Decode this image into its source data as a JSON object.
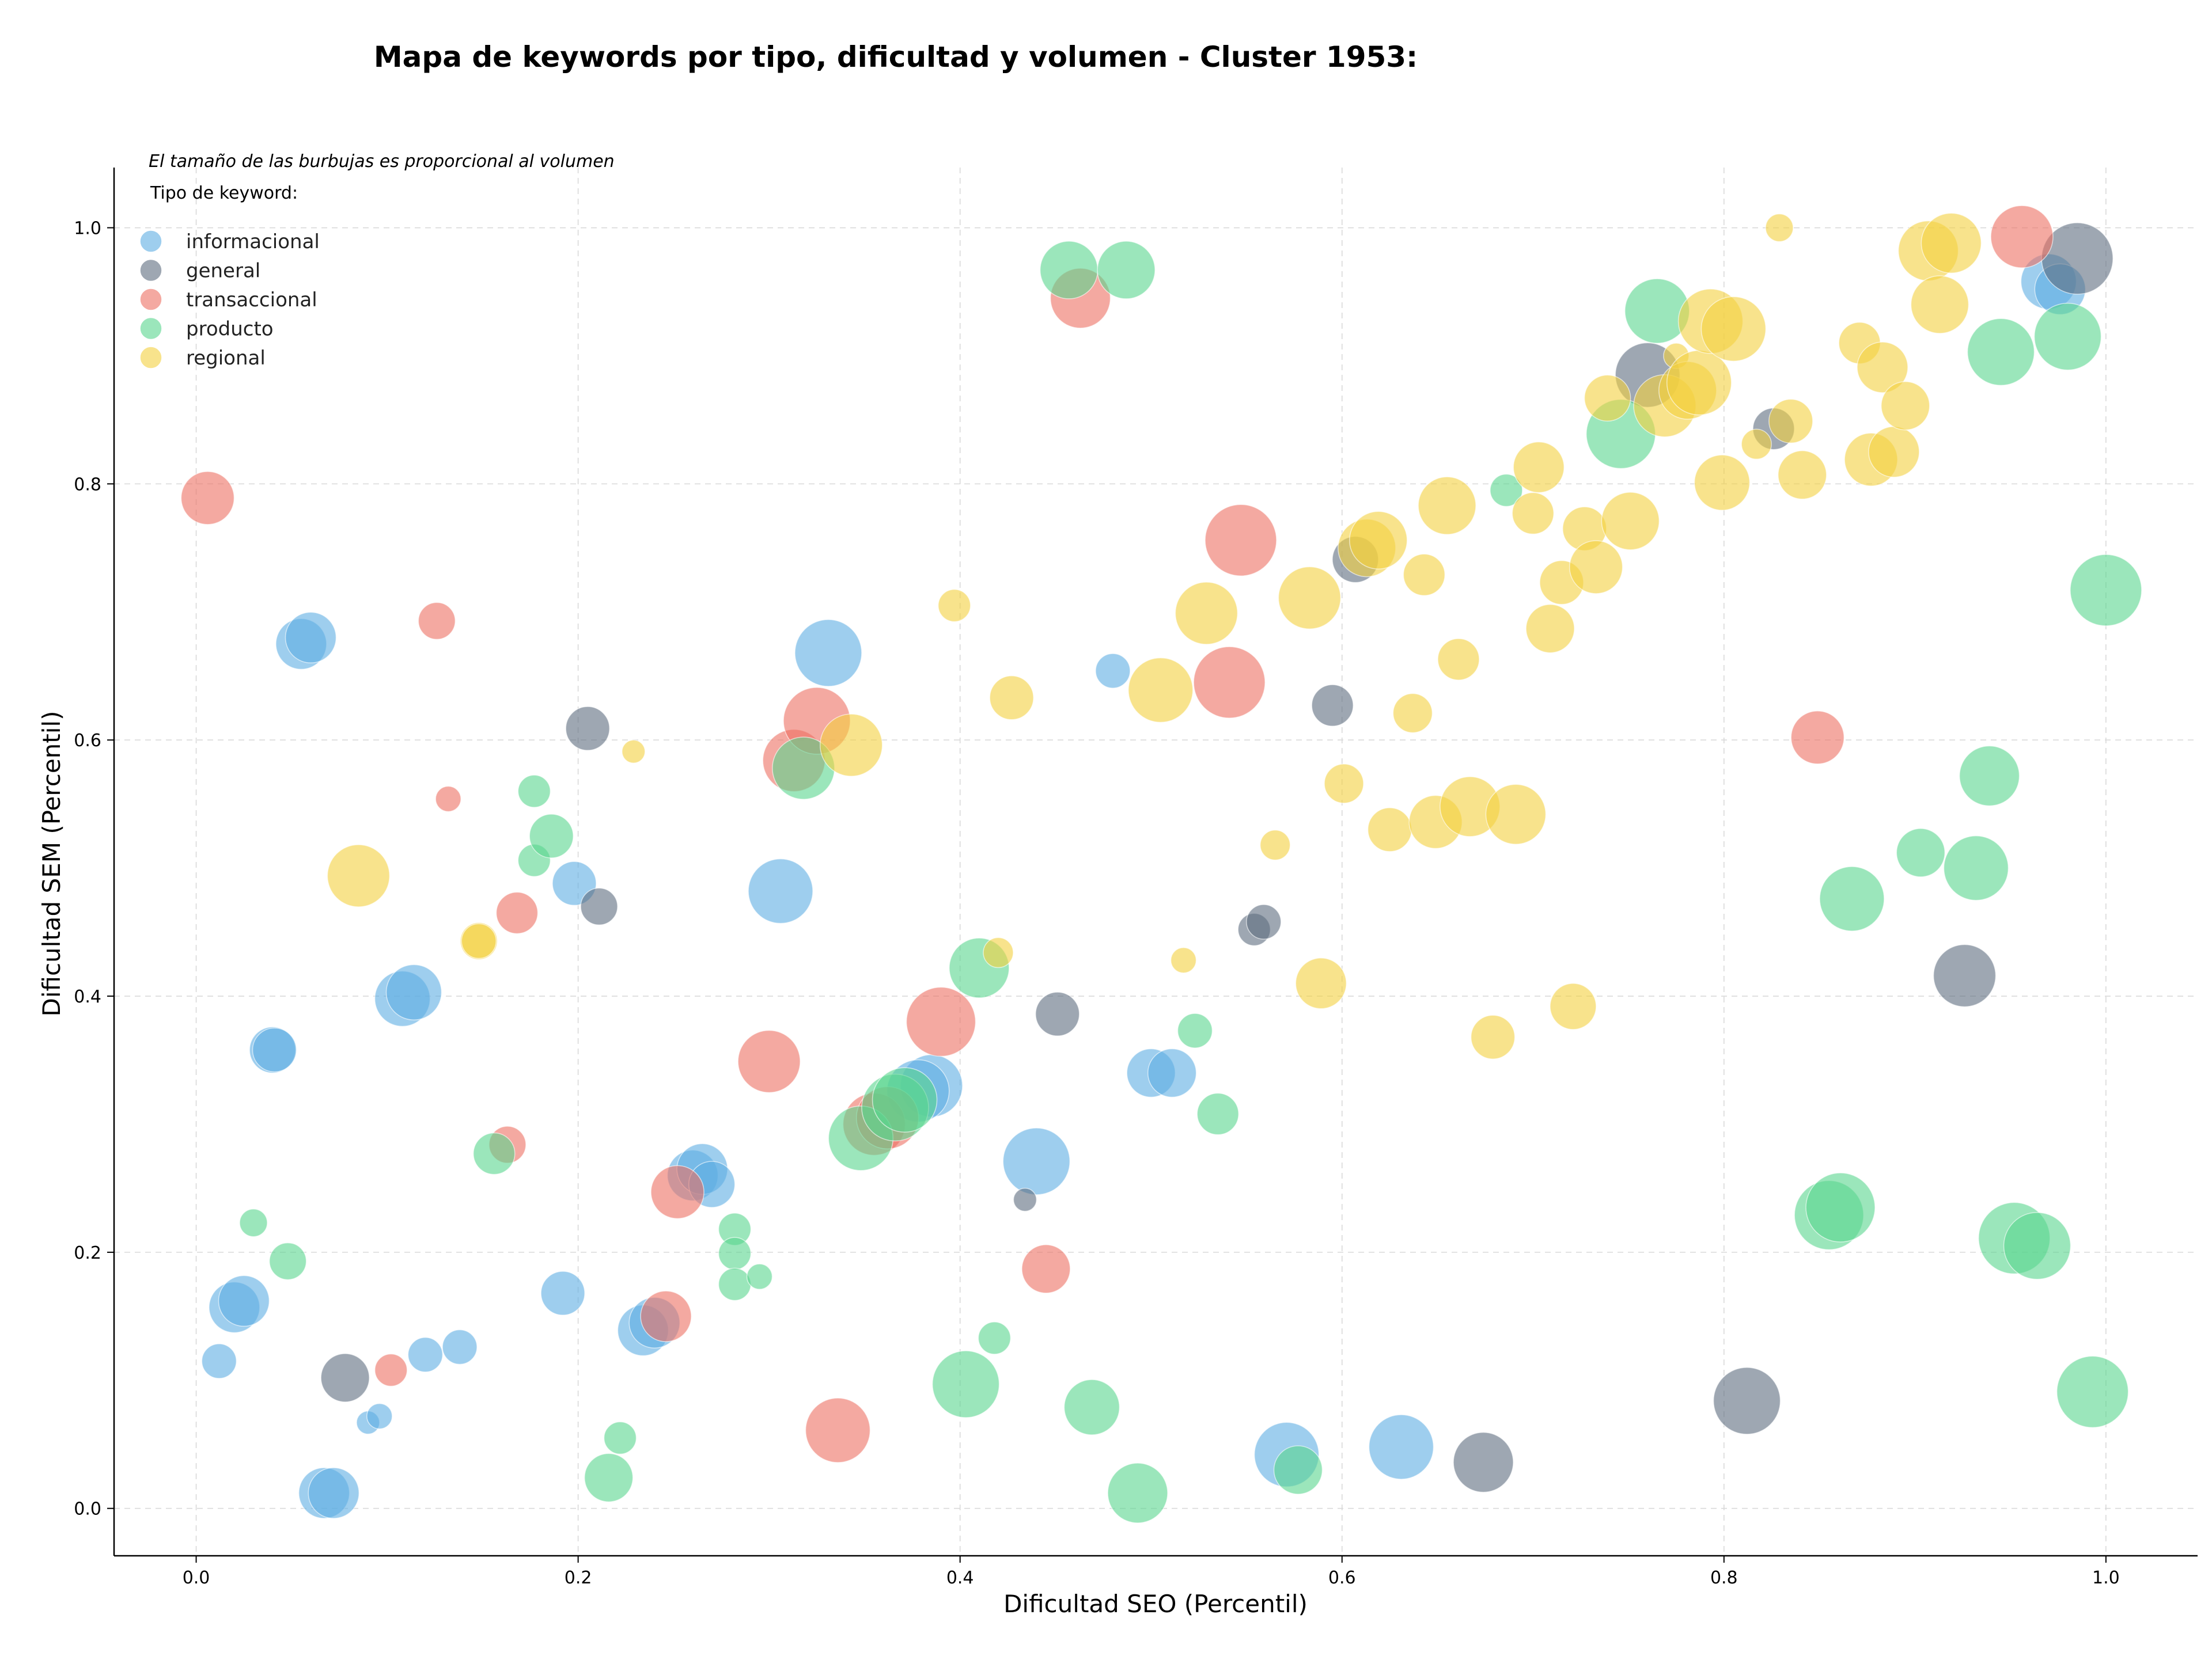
{
  "chart_data": {
    "type": "scatter",
    "title": "Mapa de keywords por tipo, dificultad y volumen - Cluster 1953:",
    "xlabel": "Dificultad SEO (Percentil)",
    "ylabel": "Dificultad SEM (Percentil)",
    "xlim": [
      -0.043,
      1.048
    ],
    "ylim": [
      -0.037,
      1.047
    ],
    "xticks": [
      "0.0",
      "0.2",
      "0.4",
      "0.6",
      "0.8",
      "1.0"
    ],
    "yticks": [
      "0.0",
      "0.2",
      "0.4",
      "0.6",
      "0.8",
      "1.0"
    ],
    "grid": true,
    "size_note": "El tamaño de las burbujas es proporcional al volumen",
    "legend_title": "Tipo de keyword:",
    "legend_position": "top-left",
    "series": [
      {
        "name": "informacional",
        "color": "#5DADE2",
        "points": [
          {
            "x": 0.055,
            "y": 0.675,
            "s": 44
          },
          {
            "x": 0.06,
            "y": 0.68,
            "s": 44
          },
          {
            "x": 0.04,
            "y": 0.358,
            "s": 40
          },
          {
            "x": 0.041,
            "y": 0.358,
            "s": 38
          },
          {
            "x": 0.108,
            "y": 0.398,
            "s": 48
          },
          {
            "x": 0.114,
            "y": 0.403,
            "s": 48
          },
          {
            "x": 0.02,
            "y": 0.157,
            "s": 44
          },
          {
            "x": 0.025,
            "y": 0.162,
            "s": 44
          },
          {
            "x": 0.012,
            "y": 0.115,
            "s": 30
          },
          {
            "x": 0.09,
            "y": 0.067,
            "s": 20
          },
          {
            "x": 0.096,
            "y": 0.072,
            "s": 22
          },
          {
            "x": 0.067,
            "y": 0.012,
            "s": 44
          },
          {
            "x": 0.072,
            "y": 0.012,
            "s": 44
          },
          {
            "x": 0.12,
            "y": 0.12,
            "s": 30
          },
          {
            "x": 0.138,
            "y": 0.126,
            "s": 30
          },
          {
            "x": 0.192,
            "y": 0.168,
            "s": 38
          },
          {
            "x": 0.198,
            "y": 0.488,
            "s": 38
          },
          {
            "x": 0.306,
            "y": 0.482,
            "s": 56
          },
          {
            "x": 0.331,
            "y": 0.668,
            "s": 58
          },
          {
            "x": 0.234,
            "y": 0.139,
            "s": 44
          },
          {
            "x": 0.24,
            "y": 0.145,
            "s": 44
          },
          {
            "x": 0.26,
            "y": 0.26,
            "s": 44
          },
          {
            "x": 0.265,
            "y": 0.265,
            "s": 44
          },
          {
            "x": 0.27,
            "y": 0.253,
            "s": 40
          },
          {
            "x": 0.385,
            "y": 0.33,
            "s": 54
          },
          {
            "x": 0.378,
            "y": 0.326,
            "s": 54
          },
          {
            "x": 0.44,
            "y": 0.271,
            "s": 58
          },
          {
            "x": 0.48,
            "y": 0.654,
            "s": 30
          },
          {
            "x": 0.5,
            "y": 0.34,
            "s": 42
          },
          {
            "x": 0.511,
            "y": 0.34,
            "s": 42
          },
          {
            "x": 0.571,
            "y": 0.042,
            "s": 56
          },
          {
            "x": 0.631,
            "y": 0.048,
            "s": 56
          },
          {
            "x": 0.97,
            "y": 0.958,
            "s": 48
          },
          {
            "x": 0.976,
            "y": 0.952,
            "s": 44
          }
        ]
      },
      {
        "name": "general",
        "color": "#5D6D7E",
        "points": [
          {
            "x": 0.205,
            "y": 0.609,
            "s": 38
          },
          {
            "x": 0.211,
            "y": 0.47,
            "s": 32
          },
          {
            "x": 0.078,
            "y": 0.102,
            "s": 42
          },
          {
            "x": 0.434,
            "y": 0.241,
            "s": 20
          },
          {
            "x": 0.451,
            "y": 0.386,
            "s": 38
          },
          {
            "x": 0.554,
            "y": 0.452,
            "s": 28
          },
          {
            "x": 0.559,
            "y": 0.458,
            "s": 30
          },
          {
            "x": 0.595,
            "y": 0.627,
            "s": 36
          },
          {
            "x": 0.607,
            "y": 0.741,
            "s": 40
          },
          {
            "x": 0.674,
            "y": 0.036,
            "s": 52
          },
          {
            "x": 0.76,
            "y": 0.885,
            "s": 56
          },
          {
            "x": 0.812,
            "y": 0.084,
            "s": 58
          },
          {
            "x": 0.826,
            "y": 0.843,
            "s": 36
          },
          {
            "x": 0.926,
            "y": 0.416,
            "s": 54
          },
          {
            "x": 0.985,
            "y": 0.976,
            "s": 62
          }
        ]
      },
      {
        "name": "transaccional",
        "color": "#EC7063",
        "points": [
          {
            "x": 0.006,
            "y": 0.789,
            "s": 46
          },
          {
            "x": 0.126,
            "y": 0.693,
            "s": 32
          },
          {
            "x": 0.132,
            "y": 0.554,
            "s": 22
          },
          {
            "x": 0.168,
            "y": 0.465,
            "s": 36
          },
          {
            "x": 0.163,
            "y": 0.284,
            "s": 32
          },
          {
            "x": 0.102,
            "y": 0.108,
            "s": 28
          },
          {
            "x": 0.246,
            "y": 0.15,
            "s": 44
          },
          {
            "x": 0.252,
            "y": 0.247,
            "s": 46
          },
          {
            "x": 0.3,
            "y": 0.349,
            "s": 54
          },
          {
            "x": 0.313,
            "y": 0.584,
            "s": 54
          },
          {
            "x": 0.325,
            "y": 0.615,
            "s": 58
          },
          {
            "x": 0.336,
            "y": 0.061,
            "s": 56
          },
          {
            "x": 0.355,
            "y": 0.3,
            "s": 54
          },
          {
            "x": 0.362,
            "y": 0.305,
            "s": 54
          },
          {
            "x": 0.39,
            "y": 0.38,
            "s": 60
          },
          {
            "x": 0.445,
            "y": 0.187,
            "s": 42
          },
          {
            "x": 0.463,
            "y": 0.945,
            "s": 52
          },
          {
            "x": 0.541,
            "y": 0.645,
            "s": 62
          },
          {
            "x": 0.547,
            "y": 0.756,
            "s": 62
          },
          {
            "x": 0.849,
            "y": 0.602,
            "s": 46
          },
          {
            "x": 0.956,
            "y": 0.993,
            "s": 54
          }
        ]
      },
      {
        "name": "producto",
        "color": "#58D68D",
        "points": [
          {
            "x": 0.03,
            "y": 0.223,
            "s": 24
          },
          {
            "x": 0.048,
            "y": 0.193,
            "s": 32
          },
          {
            "x": 0.156,
            "y": 0.277,
            "s": 36
          },
          {
            "x": 0.177,
            "y": 0.56,
            "s": 28
          },
          {
            "x": 0.177,
            "y": 0.506,
            "s": 28
          },
          {
            "x": 0.186,
            "y": 0.525,
            "s": 38
          },
          {
            "x": 0.222,
            "y": 0.055,
            "s": 28
          },
          {
            "x": 0.216,
            "y": 0.024,
            "s": 42
          },
          {
            "x": 0.282,
            "y": 0.218,
            "s": 28
          },
          {
            "x": 0.282,
            "y": 0.199,
            "s": 28
          },
          {
            "x": 0.282,
            "y": 0.175,
            "s": 28
          },
          {
            "x": 0.295,
            "y": 0.181,
            "s": 22
          },
          {
            "x": 0.318,
            "y": 0.578,
            "s": 54
          },
          {
            "x": 0.348,
            "y": 0.289,
            "s": 56
          },
          {
            "x": 0.366,
            "y": 0.313,
            "s": 58
          },
          {
            "x": 0.371,
            "y": 0.319,
            "s": 56
          },
          {
            "x": 0.403,
            "y": 0.097,
            "s": 58
          },
          {
            "x": 0.41,
            "y": 0.422,
            "s": 52
          },
          {
            "x": 0.418,
            "y": 0.133,
            "s": 28
          },
          {
            "x": 0.457,
            "y": 0.967,
            "s": 50
          },
          {
            "x": 0.487,
            "y": 0.967,
            "s": 50
          },
          {
            "x": 0.469,
            "y": 0.079,
            "s": 48
          },
          {
            "x": 0.493,
            "y": 0.012,
            "s": 52
          },
          {
            "x": 0.523,
            "y": 0.373,
            "s": 30
          },
          {
            "x": 0.535,
            "y": 0.308,
            "s": 36
          },
          {
            "x": 0.577,
            "y": 0.03,
            "s": 42
          },
          {
            "x": 0.686,
            "y": 0.795,
            "s": 28
          },
          {
            "x": 0.746,
            "y": 0.839,
            "s": 60
          },
          {
            "x": 0.765,
            "y": 0.935,
            "s": 56
          },
          {
            "x": 0.855,
            "y": 0.229,
            "s": 60
          },
          {
            "x": 0.861,
            "y": 0.235,
            "s": 60
          },
          {
            "x": 0.867,
            "y": 0.476,
            "s": 56
          },
          {
            "x": 0.903,
            "y": 0.512,
            "s": 42
          },
          {
            "x": 0.932,
            "y": 0.5,
            "s": 56
          },
          {
            "x": 0.939,
            "y": 0.572,
            "s": 52
          },
          {
            "x": 0.945,
            "y": 0.903,
            "s": 58
          },
          {
            "x": 0.952,
            "y": 0.211,
            "s": 62
          },
          {
            "x": 0.964,
            "y": 0.205,
            "s": 58
          },
          {
            "x": 0.98,
            "y": 0.915,
            "s": 58
          },
          {
            "x": 0.993,
            "y": 0.091,
            "s": 62
          },
          {
            "x": 1.0,
            "y": 0.717,
            "s": 62
          }
        ]
      },
      {
        "name": "regional",
        "color": "#F4D03F",
        "points": [
          {
            "x": 0.085,
            "y": 0.494,
            "s": 54
          },
          {
            "x": 0.148,
            "y": 0.443,
            "s": 32
          },
          {
            "x": 0.148,
            "y": 0.443,
            "s": 30
          },
          {
            "x": 0.229,
            "y": 0.591,
            "s": 20
          },
          {
            "x": 0.343,
            "y": 0.596,
            "s": 54
          },
          {
            "x": 0.397,
            "y": 0.705,
            "s": 28
          },
          {
            "x": 0.42,
            "y": 0.434,
            "s": 26
          },
          {
            "x": 0.427,
            "y": 0.633,
            "s": 38
          },
          {
            "x": 0.505,
            "y": 0.639,
            "s": 56
          },
          {
            "x": 0.517,
            "y": 0.428,
            "s": 22
          },
          {
            "x": 0.529,
            "y": 0.699,
            "s": 54
          },
          {
            "x": 0.565,
            "y": 0.518,
            "s": 26
          },
          {
            "x": 0.583,
            "y": 0.711,
            "s": 54
          },
          {
            "x": 0.589,
            "y": 0.41,
            "s": 44
          },
          {
            "x": 0.601,
            "y": 0.566,
            "s": 34
          },
          {
            "x": 0.613,
            "y": 0.75,
            "s": 50
          },
          {
            "x": 0.619,
            "y": 0.756,
            "s": 50
          },
          {
            "x": 0.625,
            "y": 0.53,
            "s": 38
          },
          {
            "x": 0.637,
            "y": 0.621,
            "s": 34
          },
          {
            "x": 0.643,
            "y": 0.729,
            "s": 36
          },
          {
            "x": 0.649,
            "y": 0.536,
            "s": 46
          },
          {
            "x": 0.655,
            "y": 0.783,
            "s": 50
          },
          {
            "x": 0.661,
            "y": 0.663,
            "s": 36
          },
          {
            "x": 0.667,
            "y": 0.548,
            "s": 52
          },
          {
            "x": 0.679,
            "y": 0.368,
            "s": 38
          },
          {
            "x": 0.691,
            "y": 0.542,
            "s": 52
          },
          {
            "x": 0.7,
            "y": 0.777,
            "s": 36
          },
          {
            "x": 0.703,
            "y": 0.813,
            "s": 44
          },
          {
            "x": 0.709,
            "y": 0.687,
            "s": 42
          },
          {
            "x": 0.715,
            "y": 0.723,
            "s": 38
          },
          {
            "x": 0.721,
            "y": 0.392,
            "s": 40
          },
          {
            "x": 0.727,
            "y": 0.765,
            "s": 38
          },
          {
            "x": 0.733,
            "y": 0.735,
            "s": 46
          },
          {
            "x": 0.739,
            "y": 0.867,
            "s": 40
          },
          {
            "x": 0.751,
            "y": 0.771,
            "s": 50
          },
          {
            "x": 0.769,
            "y": 0.861,
            "s": 54
          },
          {
            "x": 0.775,
            "y": 0.9,
            "s": 22
          },
          {
            "x": 0.781,
            "y": 0.873,
            "s": 50
          },
          {
            "x": 0.787,
            "y": 0.879,
            "s": 56
          },
          {
            "x": 0.793,
            "y": 0.927,
            "s": 56
          },
          {
            "x": 0.799,
            "y": 0.801,
            "s": 48
          },
          {
            "x": 0.805,
            "y": 0.921,
            "s": 56
          },
          {
            "x": 0.817,
            "y": 0.831,
            "s": 26
          },
          {
            "x": 0.829,
            "y": 1.0,
            "s": 24
          },
          {
            "x": 0.835,
            "y": 0.849,
            "s": 38
          },
          {
            "x": 0.841,
            "y": 0.807,
            "s": 42
          },
          {
            "x": 0.871,
            "y": 0.91,
            "s": 36
          },
          {
            "x": 0.877,
            "y": 0.819,
            "s": 46
          },
          {
            "x": 0.883,
            "y": 0.891,
            "s": 44
          },
          {
            "x": 0.889,
            "y": 0.825,
            "s": 44
          },
          {
            "x": 0.895,
            "y": 0.861,
            "s": 42
          },
          {
            "x": 0.907,
            "y": 0.982,
            "s": 52
          },
          {
            "x": 0.913,
            "y": 0.94,
            "s": 50
          },
          {
            "x": 0.919,
            "y": 0.988,
            "s": 52
          }
        ]
      }
    ]
  }
}
